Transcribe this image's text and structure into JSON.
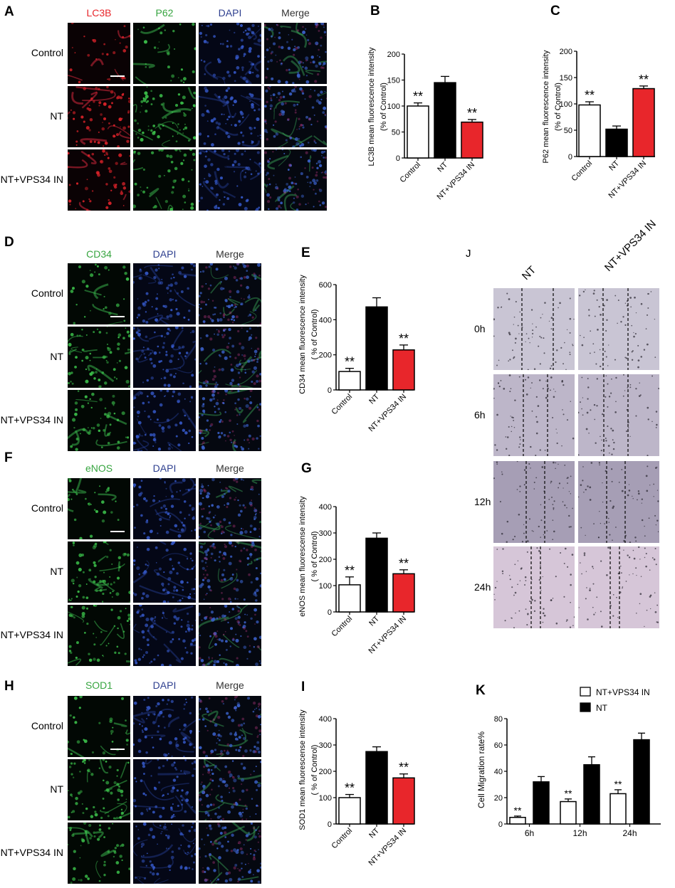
{
  "panels": {
    "A": {
      "letter": "A",
      "channels": [
        "LC3B",
        "P62",
        "DAPI",
        "Merge"
      ],
      "channel_colors": [
        "#e8262b",
        "#37a540",
        "#2e3f8f",
        "#333333"
      ],
      "rows": [
        "Control",
        "NT",
        "NT+VPS34 IN"
      ]
    },
    "D": {
      "letter": "D",
      "channels": [
        "CD34",
        "DAPI",
        "Merge"
      ],
      "channel_colors": [
        "#37a540",
        "#2e3f8f",
        "#333333"
      ],
      "rows": [
        "Control",
        "NT",
        "NT+VPS34 IN"
      ]
    },
    "F": {
      "letter": "F",
      "channels": [
        "eNOS",
        "DAPI",
        "Merge"
      ],
      "channel_colors": [
        "#37a540",
        "#2e3f8f",
        "#333333"
      ],
      "rows": [
        "Control",
        "NT",
        "NT+VPS34 IN"
      ]
    },
    "H": {
      "letter": "H",
      "channels": [
        "SOD1",
        "DAPI",
        "Merge"
      ],
      "channel_colors": [
        "#37a540",
        "#2e3f8f",
        "#333333"
      ],
      "rows": [
        "Control",
        "NT",
        "NT+VPS34 IN"
      ]
    },
    "J": {
      "letter": "J",
      "cols": [
        "NT",
        "NT+VPS34 IN"
      ],
      "rows": [
        "0h",
        "6h",
        "12h",
        "24h"
      ]
    }
  },
  "chart_data": [
    {
      "id": "B",
      "letter": "B",
      "type": "bar",
      "categories": [
        "Control",
        "NT",
        "NT+VPS34 IN"
      ],
      "values": [
        100,
        145,
        69
      ],
      "errors": [
        6,
        12,
        5
      ],
      "sig": [
        "**",
        "",
        "**"
      ],
      "colors": [
        "#ffffff",
        "#000000",
        "#e8262b"
      ],
      "ylabel": "LC3B mean fluorescence intensity",
      "ylabel2": "(% of Control)",
      "ylim": [
        0,
        200
      ],
      "yticks": [
        0,
        50,
        100,
        150,
        200
      ]
    },
    {
      "id": "C",
      "letter": "C",
      "type": "bar",
      "categories": [
        "Control",
        "NT",
        "NT+VPS34 IN"
      ],
      "values": [
        98,
        52,
        129
      ],
      "errors": [
        6,
        6,
        5
      ],
      "sig": [
        "**",
        "",
        "**"
      ],
      "colors": [
        "#ffffff",
        "#000000",
        "#e8262b"
      ],
      "ylabel": "P62 mean fluorescence intensity",
      "ylabel2": "(% of Control)",
      "ylim": [
        0,
        200
      ],
      "yticks": [
        0,
        50,
        100,
        150,
        200
      ]
    },
    {
      "id": "E",
      "letter": "E",
      "type": "bar",
      "categories": [
        "Control",
        "NT",
        "NT+VPS34 IN"
      ],
      "values": [
        105,
        473,
        228
      ],
      "errors": [
        18,
        52,
        28
      ],
      "sig": [
        "**",
        "",
        "**"
      ],
      "colors": [
        "#ffffff",
        "#000000",
        "#e8262b"
      ],
      "ylabel": "CD34 mean fluorescence intensity",
      "ylabel2": "( % of Control)",
      "ylim": [
        0,
        600
      ],
      "yticks": [
        0,
        200,
        400,
        600
      ]
    },
    {
      "id": "G",
      "letter": "G",
      "type": "bar",
      "categories": [
        "Control",
        "NT",
        "NT+VPS34 IN"
      ],
      "values": [
        103,
        280,
        145
      ],
      "errors": [
        30,
        20,
        15
      ],
      "sig": [
        "**",
        "",
        "**"
      ],
      "colors": [
        "#ffffff",
        "#000000",
        "#e8262b"
      ],
      "ylabel": "eNOS mean fluorescense intensity",
      "ylabel2": "( % of Control)",
      "ylim": [
        0,
        400
      ],
      "yticks": [
        0,
        100,
        200,
        300,
        400
      ]
    },
    {
      "id": "I",
      "letter": "I",
      "type": "bar",
      "categories": [
        "Control",
        "NT",
        "NT+VPS34 IN"
      ],
      "values": [
        100,
        275,
        175
      ],
      "errors": [
        12,
        18,
        15
      ],
      "sig": [
        "**",
        "",
        "**"
      ],
      "colors": [
        "#ffffff",
        "#000000",
        "#e8262b"
      ],
      "ylabel": "SOD1 mean fluorescense intensity",
      "ylabel2": "( % of Control)",
      "ylim": [
        0,
        400
      ],
      "yticks": [
        0,
        100,
        200,
        300,
        400
      ]
    },
    {
      "id": "K",
      "letter": "K",
      "type": "bar",
      "categories": [
        "6h",
        "12h",
        "24h"
      ],
      "series": [
        {
          "name": "NT+VPS34 IN",
          "values": [
            5,
            17,
            23
          ],
          "errors": [
            1,
            2,
            3
          ],
          "color": "#ffffff",
          "sig": [
            "**",
            "**",
            "**"
          ]
        },
        {
          "name": "NT",
          "values": [
            32,
            45,
            64
          ],
          "errors": [
            4,
            6,
            5
          ],
          "color": "#000000"
        }
      ],
      "ylabel": "Cell Migration rate%",
      "ylim": [
        0,
        80
      ],
      "yticks": [
        0,
        20,
        40,
        60,
        80
      ],
      "legend": "top-right"
    }
  ]
}
